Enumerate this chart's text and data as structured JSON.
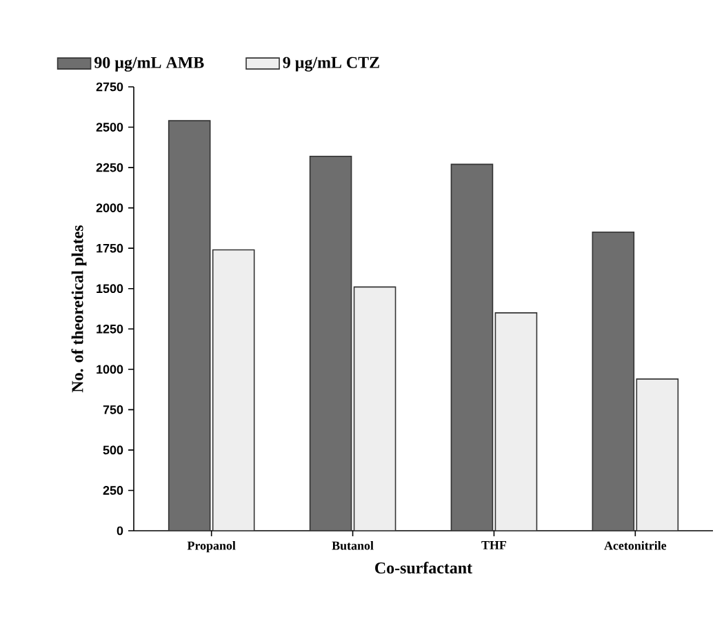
{
  "chart_data": {
    "type": "bar",
    "xlabel": "Co-surfactant",
    "ylabel": "No. of theoretical plates",
    "categories": [
      "Propanol",
      "Butanol",
      "THF",
      "Acetonitrile"
    ],
    "series": [
      {
        "name": "90 µg/mL AMB",
        "color": "#6e6e6e",
        "values": [
          2540,
          2320,
          2270,
          1850
        ]
      },
      {
        "name": "9 µg/mL CTZ",
        "color": "#eeeeee",
        "values": [
          1740,
          1510,
          1350,
          940
        ]
      }
    ],
    "ylim": [
      0,
      2750
    ],
    "yticks": [
      0,
      250,
      500,
      750,
      1000,
      1250,
      1500,
      1750,
      2000,
      2250,
      2500,
      2750
    ],
    "legend": "top left",
    "grid": false
  }
}
